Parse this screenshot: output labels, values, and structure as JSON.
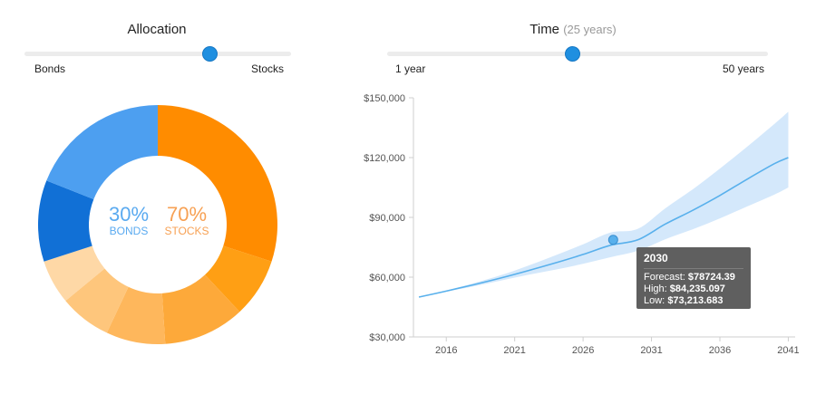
{
  "allocation": {
    "title": "Allocation",
    "slider": {
      "left_label": "Bonds",
      "right_label": "Stocks",
      "value_percent": 70
    },
    "center": {
      "bonds_percent": "30%",
      "bonds_label": "BONDS",
      "stocks_percent": "70%",
      "stocks_label": "STOCKS"
    },
    "colors": {
      "bonds": "#5aaaf0",
      "stocks": "#f7a154",
      "accent": "#1f8fe0"
    }
  },
  "time": {
    "title": "Time",
    "subtitle": "(25 years)",
    "slider": {
      "left_label": "1 year",
      "right_label": "50 years",
      "value_years": 25
    }
  },
  "tooltip": {
    "title": "2030",
    "forecast_label": "Forecast:",
    "forecast_value": "$78724.39",
    "high_label": "High:",
    "high_value": "$84,235.097",
    "low_label": "Low:",
    "low_value": "$73,213.683"
  },
  "chart_data": [
    {
      "type": "pie",
      "slices": [
        {
          "group": "stocks",
          "value": 30,
          "color": "#ff8c00"
        },
        {
          "group": "stocks",
          "value": 8,
          "color": "#ff9f14"
        },
        {
          "group": "stocks",
          "value": 11,
          "color": "#fda93a"
        },
        {
          "group": "stocks",
          "value": 8,
          "color": "#feb75c"
        },
        {
          "group": "stocks",
          "value": 7,
          "color": "#fec67c"
        },
        {
          "group": "stocks",
          "value": 6,
          "color": "#fed8a6"
        },
        {
          "group": "bonds",
          "value": 11,
          "color": "#1170d6"
        },
        {
          "group": "bonds",
          "value": 19,
          "color": "#4d9ff0"
        }
      ]
    },
    {
      "type": "area",
      "x_ticks": [
        2016,
        2021,
        2026,
        2031,
        2036,
        2041
      ],
      "y_ticks": [
        "$30,000",
        "$60,000",
        "$90,000",
        "$120,000",
        "$150,000"
      ],
      "ylim": [
        30000,
        150000
      ],
      "xlim": [
        2013.6,
        2041.5
      ],
      "x": [
        2014,
        2016,
        2018,
        2020,
        2022,
        2024,
        2026,
        2028,
        2030,
        2032,
        2034,
        2036,
        2038,
        2040,
        2041
      ],
      "forecast": [
        50000,
        53000,
        56200,
        59600,
        63300,
        67200,
        71400,
        76000,
        78724,
        86600,
        93500,
        101000,
        109200,
        117000,
        120000
      ],
      "high": [
        50000,
        53300,
        57000,
        61000,
        65800,
        71000,
        76500,
        82400,
        84235,
        94500,
        104000,
        114500,
        125500,
        137000,
        143000
      ],
      "low": [
        50000,
        52700,
        55400,
        58300,
        61200,
        63800,
        66700,
        70000,
        73214,
        79000,
        84000,
        89500,
        95500,
        101500,
        105000
      ],
      "highlight": {
        "x": 2028.2,
        "y": 78724
      },
      "colors": {
        "line": "#58b0ec",
        "band": "#d4e8fb",
        "point": "#58b0ec"
      }
    }
  ]
}
